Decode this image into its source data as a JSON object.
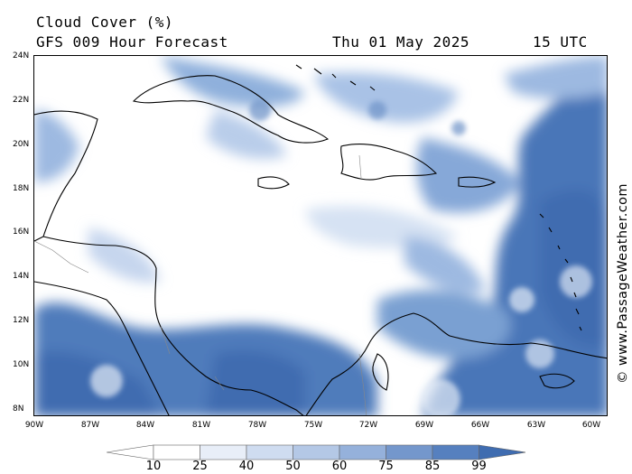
{
  "header": {
    "title": "Cloud Cover (%)",
    "subtitle": "GFS 009 Hour Forecast",
    "date": "Thu 01 May 2025",
    "time": "15 UTC"
  },
  "map": {
    "region": "Caribbean Sea",
    "latitude_labels": [
      "24N",
      "22N",
      "20N",
      "18N",
      "16N",
      "14N",
      "12N",
      "10N",
      "8N"
    ],
    "longitude_labels": [
      "90W",
      "87W",
      "84W",
      "81W",
      "78W",
      "75W",
      "72W",
      "69W",
      "66W",
      "63W",
      "60W"
    ]
  },
  "colorbar": {
    "labels": [
      "10",
      "25",
      "40",
      "50",
      "60",
      "75",
      "85",
      "99"
    ],
    "colors": [
      "#ffffff",
      "#e8eef8",
      "#cfdcf0",
      "#b4c8e6",
      "#95b1db",
      "#7497cc",
      "#5680bf",
      "#3f6cb0"
    ]
  },
  "credit": "© www.PassageWeather.com"
}
